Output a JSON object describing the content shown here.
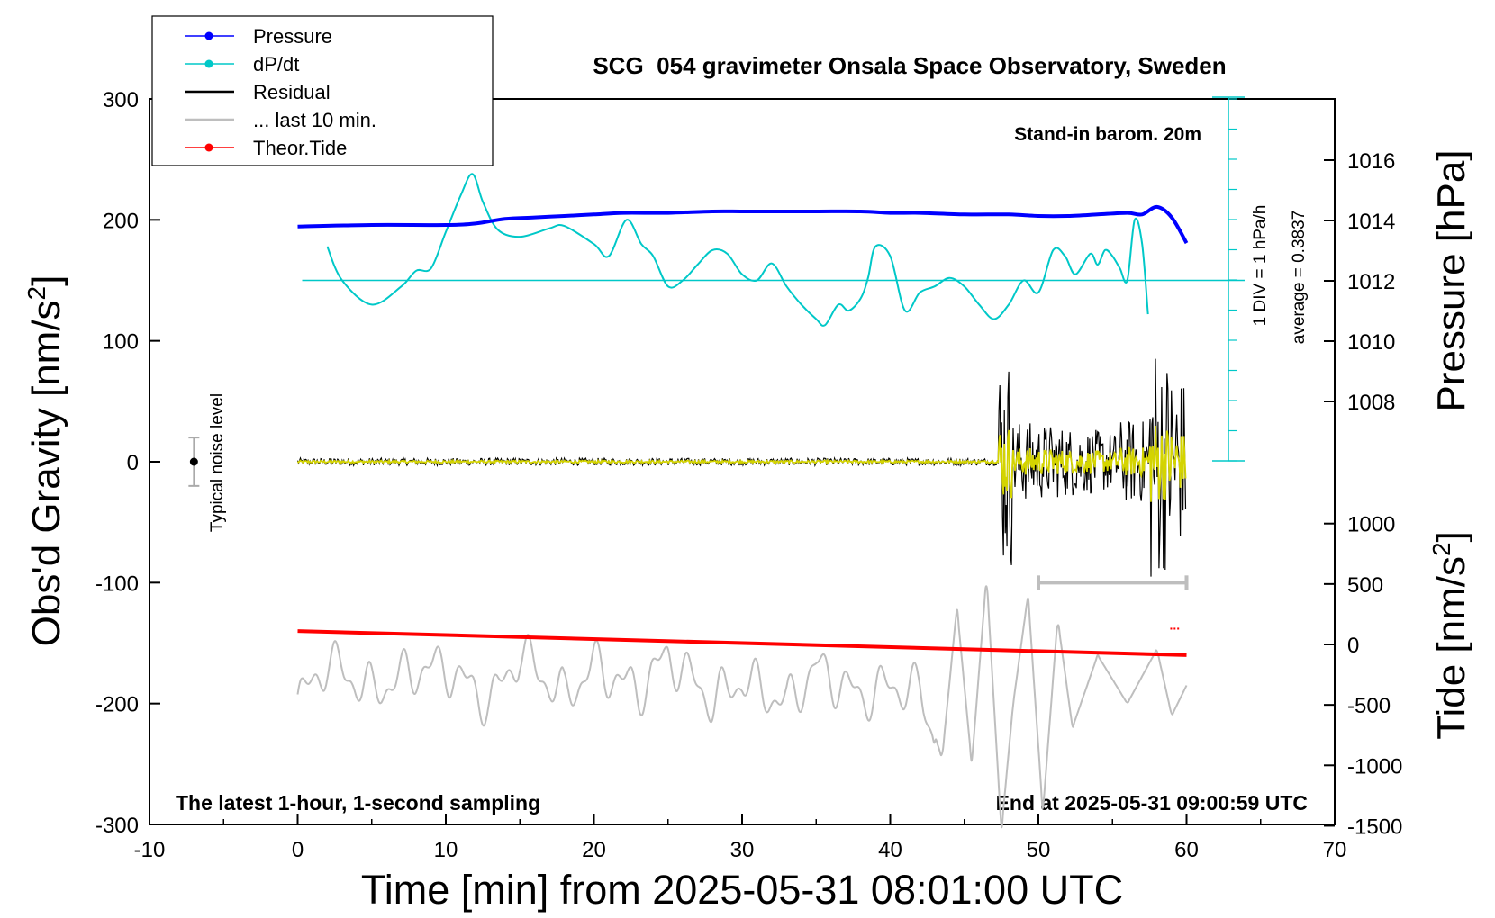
{
  "chart_data": {
    "type": "line",
    "title": "SCG_054 gravimeter Onsala Space Observatory, Sweden",
    "xlabel": "Time [min] from 2025-05-31 08:01:00 UTC",
    "ylabel_left": "Obs'd Gravity [nm/s",
    "ylabel_left_sup": "2",
    "ylabel_left_end": "]",
    "ylabel_pressure": "Pressure [hPa]",
    "ylabel_tide": "Tide [nm/s",
    "ylabel_tide_sup": "2",
    "ylabel_tide_end": "]",
    "xlim": [
      -10,
      70
    ],
    "ylim": [
      -300,
      300
    ],
    "x_ticks": [
      -10,
      0,
      10,
      20,
      30,
      40,
      50,
      60,
      70
    ],
    "y_ticks": [
      -300,
      -200,
      -100,
      0,
      100,
      200,
      300
    ],
    "pressure_ticks": [
      1008,
      1010,
      1012,
      1014,
      1016
    ],
    "tide_ticks": [
      -1500,
      -1000,
      -500,
      0,
      500,
      1000
    ],
    "grid": false,
    "legend_position": "top-left",
    "colors": {
      "pressure": "#0000ff",
      "dpdt": "#00c8c8",
      "residual": "#000000",
      "last10": "#bebebe",
      "tide": "#ff0000",
      "filtered": "#d4d400"
    },
    "legend": [
      {
        "label": "Pressure",
        "color": "#0000ff",
        "marker": true
      },
      {
        "label": "dP/dt",
        "color": "#00c8c8",
        "marker": true
      },
      {
        "label": "Residual",
        "color": "#000000",
        "marker": false
      },
      {
        "label": "... last 10 min.",
        "color": "#bebebe",
        "marker": false
      },
      {
        "label": "Theor.Tide",
        "color": "#ff0000",
        "marker": true
      }
    ],
    "annotations": {
      "barom": "Stand-in barom. 20m",
      "div": "1 DIV = 1 hPa/h",
      "average": "average = 0.3837",
      "noise": "Typical noise level",
      "bottom_left": "The latest 1-hour, 1-second sampling",
      "bottom_right": "End at 2025-05-31 09:00:59 UTC",
      "tide_dots": "..."
    },
    "series": [
      {
        "name": "Pressure",
        "unit": "hPa",
        "x": [
          0,
          5,
          10,
          12,
          14,
          16,
          18,
          20,
          22,
          25,
          28,
          30,
          32,
          35,
          38,
          40,
          42,
          45,
          48,
          50,
          52,
          54,
          56,
          57,
          58,
          59,
          60
        ],
        "values": [
          1013.8,
          1013.85,
          1013.85,
          1013.9,
          1014.05,
          1014.1,
          1014.15,
          1014.2,
          1014.25,
          1014.25,
          1014.3,
          1014.3,
          1014.3,
          1014.3,
          1014.3,
          1014.25,
          1014.25,
          1014.2,
          1014.2,
          1014.15,
          1014.15,
          1014.2,
          1014.25,
          1014.2,
          1014.45,
          1014.1,
          1013.25
        ]
      },
      {
        "name": "dP/dt",
        "unit": "nm/s2 (plotted)",
        "x": [
          2,
          3,
          5,
          7,
          8,
          9,
          10,
          11,
          11.8,
          12.5,
          13.5,
          15,
          17,
          18,
          20,
          21,
          22.2,
          23.2,
          24,
          25,
          26,
          27,
          28,
          29,
          30,
          31,
          32,
          33,
          34,
          35,
          35.6,
          36.5,
          37.2,
          38,
          38.5,
          39,
          40,
          41,
          42,
          43,
          44,
          45,
          46,
          47,
          48,
          49,
          50,
          51,
          51.8,
          52.5,
          53.5,
          54,
          54.5,
          55,
          55.5,
          56,
          56.5,
          57,
          57.4
        ],
        "values": [
          178,
          150,
          130,
          145,
          158,
          160,
          190,
          220,
          238,
          215,
          192,
          186,
          193,
          195,
          180,
          170,
          200,
          180,
          170,
          145,
          150,
          163,
          175,
          172,
          155,
          150,
          164,
          145,
          130,
          118,
          113,
          130,
          125,
          135,
          152,
          178,
          170,
          125,
          140,
          145,
          152,
          145,
          130,
          118,
          130,
          150,
          140,
          175,
          170,
          155,
          172,
          163,
          175,
          170,
          160,
          150,
          200,
          180,
          122
        ]
      },
      {
        "name": "Residual",
        "unit": "nm/s2",
        "x": [
          0,
          47.5,
          47.8,
          48,
          48.3,
          48.8,
          50,
          52,
          54,
          56,
          57,
          57.5,
          58,
          58.3,
          58.6,
          59,
          59.5,
          60
        ],
        "values": [
          0,
          0,
          -40,
          90,
          110,
          -80,
          40,
          -35,
          40,
          30,
          -20,
          85,
          135,
          -125,
          100,
          -100,
          60,
          -10
        ]
      },
      {
        "name": "... last 10 min.",
        "unit": "nm/s2 (plotted)",
        "x": [
          0,
          2,
          5,
          8,
          10,
          13,
          15,
          18,
          20,
          23,
          25,
          28,
          30,
          33,
          35,
          38,
          40,
          42,
          43.5,
          44.5,
          45.5,
          46.5,
          47.5,
          48.3,
          49.3,
          50.3,
          51.3,
          52.3,
          54,
          56,
          58,
          59,
          60
        ],
        "values": [
          -200,
          -165,
          -190,
          -172,
          -170,
          -200,
          -158,
          -195,
          -168,
          -190,
          -160,
          -198,
          -180,
          -200,
          -170,
          -195,
          -185,
          -190,
          -245,
          -120,
          -250,
          -95,
          -305,
          -200,
          -110,
          -290,
          -130,
          -220,
          -160,
          -200,
          -155,
          -210,
          -185
        ]
      },
      {
        "name": "Theor.Tide",
        "unit": "nm/s2",
        "x": [
          0,
          60
        ],
        "values": [
          -140,
          -160
        ]
      }
    ],
    "error_bar_noise": {
      "x": -7,
      "center": 0,
      "low": -20,
      "high": 20
    },
    "error_bar_last10": {
      "x_start": 50,
      "x_end": 60,
      "y": -100
    }
  }
}
